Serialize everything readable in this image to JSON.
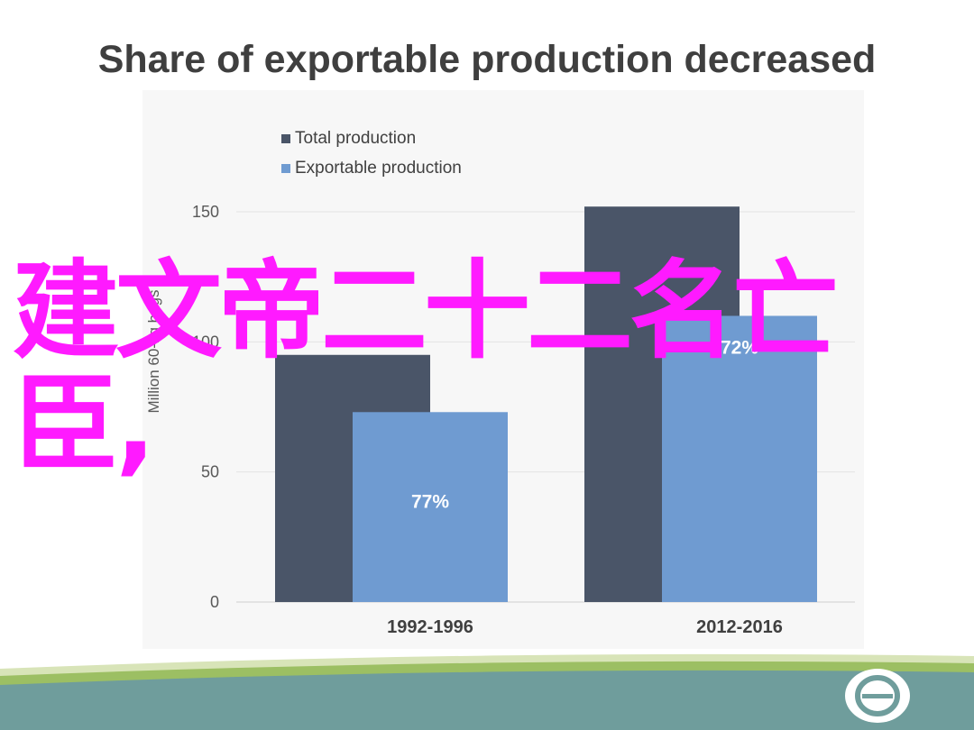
{
  "slide": {
    "title": "Share of exportable production decreased",
    "overlay_text": "建文帝二十二名亡臣,"
  },
  "colors": {
    "total": "#4a5568",
    "exportable": "#6f9bd1",
    "title": "#3f3f3f",
    "overlay": "#ff1aff",
    "footer_green": "#9cbf63",
    "footer_teal": "#6f9d9c"
  },
  "chart_data": {
    "type": "bar",
    "title": "",
    "xlabel": "",
    "ylabel": "Million 60-kg bags",
    "categories": [
      "1992-1996",
      "2012-2016"
    ],
    "series": [
      {
        "name": "Total production",
        "values": [
          95,
          152
        ]
      },
      {
        "name": "Exportable production",
        "values": [
          73,
          110
        ]
      }
    ],
    "data_labels": [
      "77%",
      "72%"
    ],
    "ylim": [
      0,
      150
    ],
    "yticks": [
      0,
      50,
      100,
      150
    ],
    "grid": true,
    "legend_position": "top-left"
  }
}
